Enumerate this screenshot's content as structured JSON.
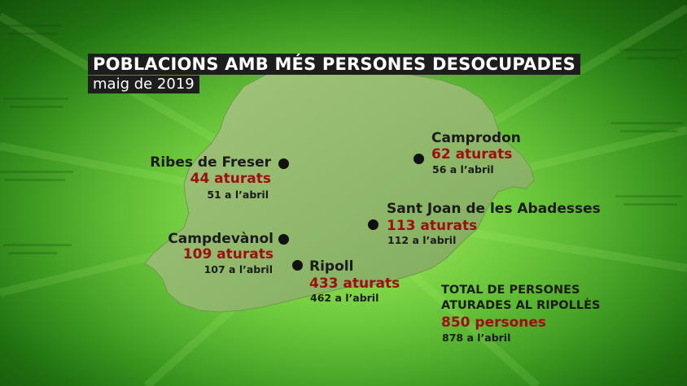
{
  "title": "POBLACIONS AMB MÉS PERSONES DESOCUPADES",
  "subtitle": "maig de 2019",
  "towns": [
    {
      "name": "Ribes de Freser",
      "count": "44 aturats",
      "previous": "51 a l’abril"
    },
    {
      "name": "Camprodon",
      "count": "62 aturats",
      "previous": "56 a l’abril"
    },
    {
      "name": "Sant Joan de les Abadesses",
      "count": "113 aturats",
      "previous": "112 a l’abril"
    },
    {
      "name": "Campdevànol",
      "count": "109 aturats",
      "previous": "107 a l’abril"
    },
    {
      "name": "Ripoll",
      "count": "433 aturats",
      "previous": "462 a l’abril"
    }
  ],
  "total": {
    "line1": "TOTAL DE PERSONES",
    "line2": "ATURADES AL RIPOLLÈS",
    "count": "850 persones",
    "previous": "878 a l’abril"
  },
  "colors": {
    "background": "#4fb82a",
    "map_fill": "#8fb86a",
    "count_text": "#9e0d12",
    "title_box": "#1d1d1d"
  }
}
